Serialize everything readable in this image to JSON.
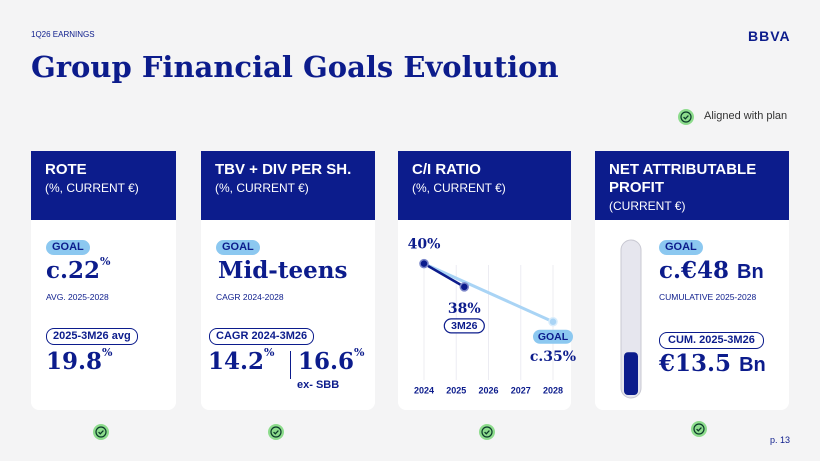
{
  "header": {
    "eyebrow": "1Q26 EARNINGS",
    "logo": "BBVA",
    "title": "Group Financial Goals Evolution",
    "legend": "Aligned with plan"
  },
  "cards": [
    {
      "title": "ROTE",
      "subtitle": "(%, CURRENT €)",
      "goal_tag": "GOAL",
      "goal": {
        "main": "c.22",
        "sup": "%"
      },
      "goal_note": "AVG. 2025-2028",
      "actual_tag": "2025-3M26 avg",
      "actual": {
        "main": "19.8",
        "sup": "%"
      }
    },
    {
      "title": "TBV + DIV PER SH.",
      "subtitle": "(%, CURRENT €)",
      "goal_tag": "GOAL",
      "goal": {
        "main": "Mid-teens"
      },
      "goal_note": "CAGR 2024-2028",
      "actual_tag": "CAGR 2024-3M26",
      "actual": {
        "main": "14.2",
        "sup": "%"
      },
      "actual_alt": {
        "main": "16.6",
        "sup": "%"
      },
      "actual_alt_note": "ex- SBB"
    },
    {
      "title": "C/I RATIO",
      "subtitle": "(%, CURRENT €)",
      "chart": {
        "type": "line",
        "xlim": [
          2024,
          2028
        ],
        "xticks": [
          2024,
          2025,
          2026,
          2027,
          2028
        ],
        "ylim": [
          33,
          41
        ],
        "series": [
          {
            "color": "#a9d4f5",
            "x": [
              2024,
              2028
            ],
            "values": [
              40,
              35
            ],
            "value_labels": [
              null,
              "c.35%"
            ],
            "tags": [
              null,
              "GOAL"
            ]
          },
          {
            "color": "#0c1c8c",
            "x": [
              2024,
              2025.25
            ],
            "values": [
              40,
              38
            ],
            "value_labels": [
              "40%",
              "38%"
            ],
            "tags": [
              null,
              "3M26"
            ]
          }
        ]
      }
    },
    {
      "title": "NET ATTRIBUTABLE PROFIT",
      "subtitle": "(CURRENT €)",
      "goal_tag": "GOAL",
      "goal": {
        "prefix": "c.€",
        "number": 48,
        "unit": "Bn"
      },
      "goal_note": "CUMULATIVE 2025-2028",
      "actual_tag": "CUM. 2025-3M26",
      "actual": {
        "prefix": "€",
        "number": 13.5,
        "unit": "Bn"
      }
    }
  ],
  "page": "p. 13"
}
